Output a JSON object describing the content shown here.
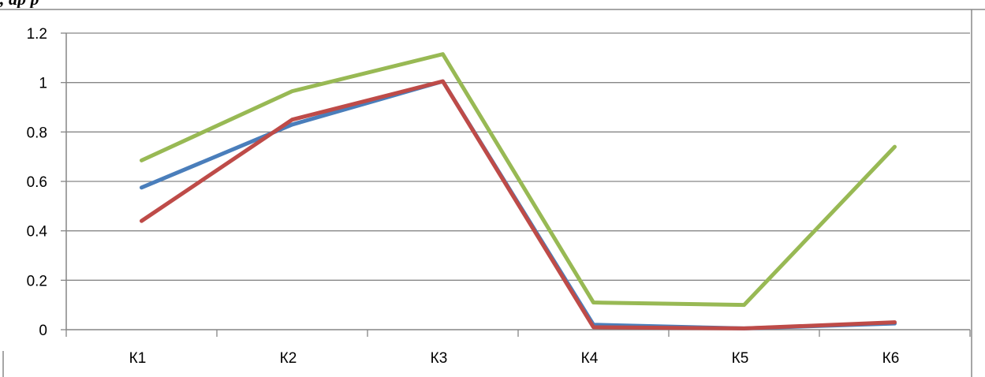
{
  "header": {
    "text": ", ар  р"
  },
  "chart_data": {
    "type": "line",
    "title": "",
    "xlabel": "",
    "ylabel": "",
    "categories": [
      "К1",
      "К2",
      "К3",
      "К4",
      "К5",
      "К6"
    ],
    "ylim": [
      0,
      1.2
    ],
    "yticks": [
      0,
      0.2,
      0.4,
      0.6,
      0.8,
      1,
      1.2
    ],
    "ytick_labels": [
      "0",
      "0.2",
      "0.4",
      "0.6",
      "0.8",
      "1",
      "1.2"
    ],
    "grid": true,
    "legend": "none",
    "series": [
      {
        "color": "#4a7ebb",
        "values": [
          0.575,
          0.83,
          1.005,
          0.02,
          0.005,
          0.025
        ]
      },
      {
        "color": "#be4b48",
        "values": [
          0.44,
          0.85,
          1.005,
          0.01,
          0.005,
          0.03
        ]
      },
      {
        "color": "#98b954",
        "values": [
          0.685,
          0.965,
          1.115,
          0.11,
          0.1,
          0.74
        ]
      }
    ]
  }
}
